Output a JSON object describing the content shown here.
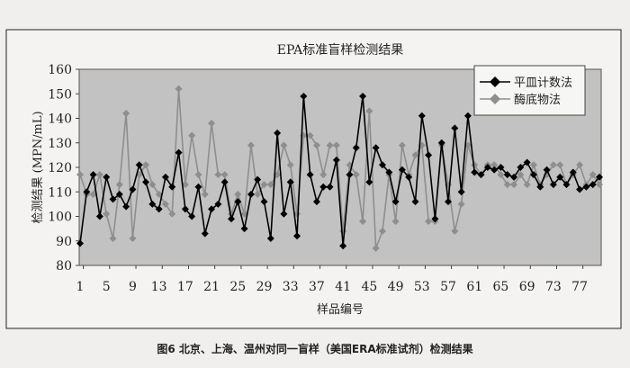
{
  "chart_data": {
    "type": "line",
    "title": "EPA标准盲样检测结果",
    "xlabel": "样品编号",
    "ylabel": "检测结果 (MPN/mL)",
    "ylim": [
      80,
      160
    ],
    "yticks": [
      80,
      90,
      100,
      110,
      120,
      130,
      140,
      150,
      160
    ],
    "xticks": [
      1,
      5,
      9,
      13,
      17,
      21,
      25,
      29,
      33,
      37,
      41,
      45,
      49,
      53,
      57,
      61,
      65,
      69,
      73,
      77
    ],
    "x": [
      1,
      2,
      3,
      4,
      5,
      6,
      7,
      8,
      9,
      10,
      11,
      12,
      13,
      14,
      15,
      16,
      17,
      18,
      19,
      20,
      21,
      22,
      23,
      24,
      25,
      26,
      27,
      28,
      29,
      30,
      31,
      32,
      33,
      34,
      35,
      36,
      37,
      38,
      39,
      40,
      41,
      42,
      43,
      44,
      45,
      46,
      47,
      48,
      49,
      50,
      51,
      52,
      53,
      54,
      55,
      56,
      57,
      58,
      59,
      60,
      61,
      62,
      63,
      64,
      65,
      66,
      67,
      68,
      69,
      70,
      71,
      72,
      73,
      74,
      75,
      76,
      77,
      78,
      79,
      80
    ],
    "grid": false,
    "legend_position": "top-right",
    "plot_background": "#c2c2c2",
    "series": [
      {
        "name": "平皿计数法",
        "color": "#000000",
        "marker": "diamond",
        "values": [
          89,
          110,
          117,
          100,
          116,
          107,
          109,
          104,
          111,
          121,
          114,
          105,
          103,
          116,
          112,
          126,
          103,
          100,
          112,
          93,
          103,
          105,
          114,
          99,
          106,
          95,
          109,
          115,
          106,
          91,
          134,
          101,
          114,
          92,
          149,
          117,
          106,
          112,
          112,
          123,
          88,
          117,
          128,
          149,
          114,
          128,
          121,
          118,
          106,
          119,
          116,
          106,
          141,
          125,
          99,
          130,
          106,
          136,
          110,
          141,
          118,
          117,
          120,
          119,
          120,
          117,
          116,
          120,
          122,
          117,
          112,
          119,
          113,
          116,
          113,
          118,
          111,
          112,
          113,
          116
        ]
      },
      {
        "name": "酶底物法",
        "color": "#8e8e8e",
        "marker": "diamond",
        "values": [
          117,
          109,
          109,
          117,
          101,
          91,
          113,
          142,
          91,
          117,
          121,
          113,
          109,
          105,
          101,
          152,
          113,
          133,
          117,
          109,
          138,
          117,
          117,
          101,
          109,
          101,
          129,
          109,
          113,
          113,
          117,
          129,
          121,
          101,
          133,
          133,
          129,
          117,
          129,
          129,
          94,
          121,
          117,
          98,
          143,
          87,
          94,
          117,
          98,
          129,
          117,
          125,
          129,
          98,
          98,
          129,
          113,
          94,
          105,
          129,
          121,
          117,
          121,
          121,
          117,
          113,
          113,
          117,
          113,
          121,
          113,
          117,
          121,
          121,
          113,
          117,
          121,
          113,
          117,
          113
        ]
      }
    ]
  },
  "caption": "图6  北京、上海、温州对同一盲样（美国ERA标准试剂）检测结果"
}
